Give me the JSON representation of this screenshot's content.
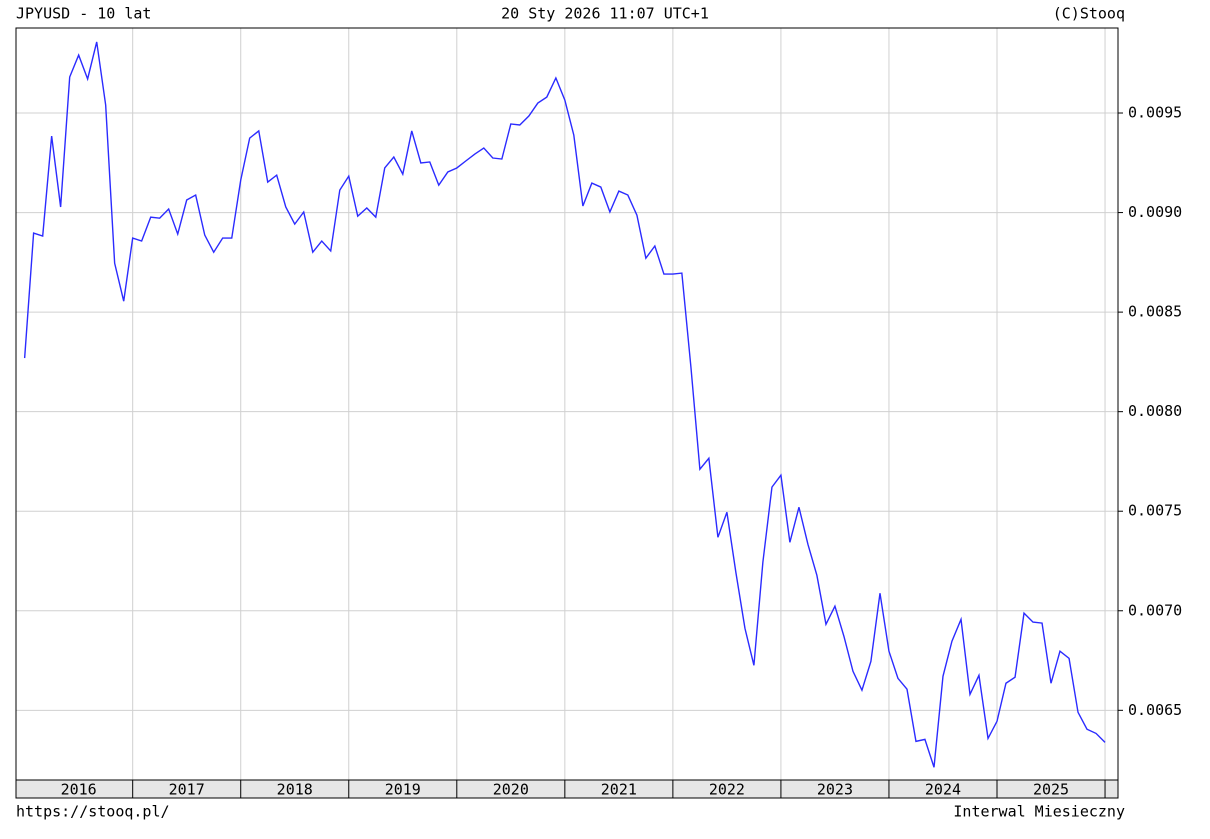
{
  "chart_data": {
    "type": "line",
    "title": "JPYUSD - 10 lat",
    "subtitle": "20 Sty 2026 11:07 UTC+1",
    "copyright": "(C)Stooq",
    "footer_left": "https://stooq.pl/",
    "footer_right": "Interwal Miesieczny",
    "x": [
      2016.0,
      2016.083,
      2016.167,
      2016.25,
      2016.333,
      2016.417,
      2016.5,
      2016.583,
      2016.667,
      2016.75,
      2016.833,
      2016.917,
      2017.0,
      2017.083,
      2017.167,
      2017.25,
      2017.333,
      2017.417,
      2017.5,
      2017.583,
      2017.667,
      2017.75,
      2017.833,
      2017.917,
      2018.0,
      2018.083,
      2018.167,
      2018.25,
      2018.333,
      2018.417,
      2018.5,
      2018.583,
      2018.667,
      2018.75,
      2018.833,
      2018.917,
      2019.0,
      2019.083,
      2019.167,
      2019.25,
      2019.333,
      2019.417,
      2019.5,
      2019.583,
      2019.667,
      2019.75,
      2019.833,
      2019.917,
      2020.0,
      2020.083,
      2020.167,
      2020.25,
      2020.333,
      2020.417,
      2020.5,
      2020.583,
      2020.667,
      2020.75,
      2020.833,
      2020.917,
      2021.0,
      2021.083,
      2021.167,
      2021.25,
      2021.333,
      2021.417,
      2021.5,
      2021.583,
      2021.667,
      2021.75,
      2021.833,
      2021.917,
      2022.0,
      2022.083,
      2022.167,
      2022.25,
      2022.333,
      2022.417,
      2022.5,
      2022.583,
      2022.667,
      2022.75,
      2022.833,
      2022.917,
      2023.0,
      2023.083,
      2023.167,
      2023.25,
      2023.333,
      2023.417,
      2023.5,
      2023.583,
      2023.667,
      2023.75,
      2023.833,
      2023.917,
      2024.0,
      2024.083,
      2024.167,
      2024.25,
      2024.333,
      2024.417,
      2024.5,
      2024.583,
      2024.667,
      2024.75,
      2024.833,
      2024.917,
      2025.0,
      2025.083,
      2025.167,
      2025.25,
      2025.333,
      2025.417,
      2025.5,
      2025.583,
      2025.667,
      2025.75,
      2025.833,
      2025.917,
      2026.0
    ],
    "series": [
      {
        "name": "JPYUSD",
        "color": "#2b2bff",
        "values": [
          0.008269,
          0.008897,
          0.008882,
          0.009384,
          0.009028,
          0.009681,
          0.009791,
          0.009671,
          0.009857,
          0.00954,
          0.008746,
          0.008555,
          0.008872,
          0.008857,
          0.008977,
          0.008972,
          0.009018,
          0.008892,
          0.009063,
          0.009088,
          0.008887,
          0.008801,
          0.008872,
          0.008872,
          0.009163,
          0.009374,
          0.00941,
          0.009153,
          0.009188,
          0.009028,
          0.008942,
          0.009003,
          0.008801,
          0.008857,
          0.008807,
          0.009113,
          0.009183,
          0.008982,
          0.009023,
          0.008977,
          0.009224,
          0.009279,
          0.009193,
          0.00941,
          0.009249,
          0.009254,
          0.009138,
          0.009204,
          0.009224,
          0.009259,
          0.009294,
          0.009324,
          0.009274,
          0.009269,
          0.009445,
          0.00944,
          0.009485,
          0.00955,
          0.00958,
          0.009676,
          0.009565,
          0.009389,
          0.009033,
          0.009148,
          0.009128,
          0.009003,
          0.009108,
          0.009088,
          0.008987,
          0.008771,
          0.008832,
          0.008691,
          0.008691,
          0.008696,
          0.008224,
          0.007711,
          0.007766,
          0.007369,
          0.007495,
          0.007193,
          0.006912,
          0.006726,
          0.007244,
          0.007621,
          0.007681,
          0.007344,
          0.00752,
          0.007334,
          0.007178,
          0.006932,
          0.007023,
          0.006872,
          0.006696,
          0.006601,
          0.006746,
          0.007088,
          0.006797,
          0.006661,
          0.006606,
          0.006344,
          0.006354,
          0.006214,
          0.006671,
          0.006847,
          0.006957,
          0.00658,
          0.006676,
          0.006359,
          0.006445,
          0.006636,
          0.006666,
          0.006988,
          0.006943,
          0.006938,
          0.006636,
          0.006797,
          0.006761,
          0.00649,
          0.006405,
          0.006384,
          0.006339
        ]
      }
    ],
    "xlim": [
      2015.92,
      2026.12
    ],
    "xticks": [
      2017,
      2018,
      2019,
      2020,
      2021,
      2022,
      2023,
      2024,
      2025,
      2026
    ],
    "x_year_labels": [
      2016,
      2017,
      2018,
      2019,
      2020,
      2021,
      2022,
      2023,
      2024,
      2025
    ],
    "ylim": [
      0.00615,
      0.009927
    ],
    "yticks": [
      0.0065,
      {
        "value": 0.007,
        "label": "0.0070"
      },
      0.0075,
      {
        "value": 0.008,
        "label": "0.0080"
      },
      0.0085,
      {
        "value": 0.009,
        "label": "0.0090"
      },
      0.0095
    ],
    "grid": true
  }
}
